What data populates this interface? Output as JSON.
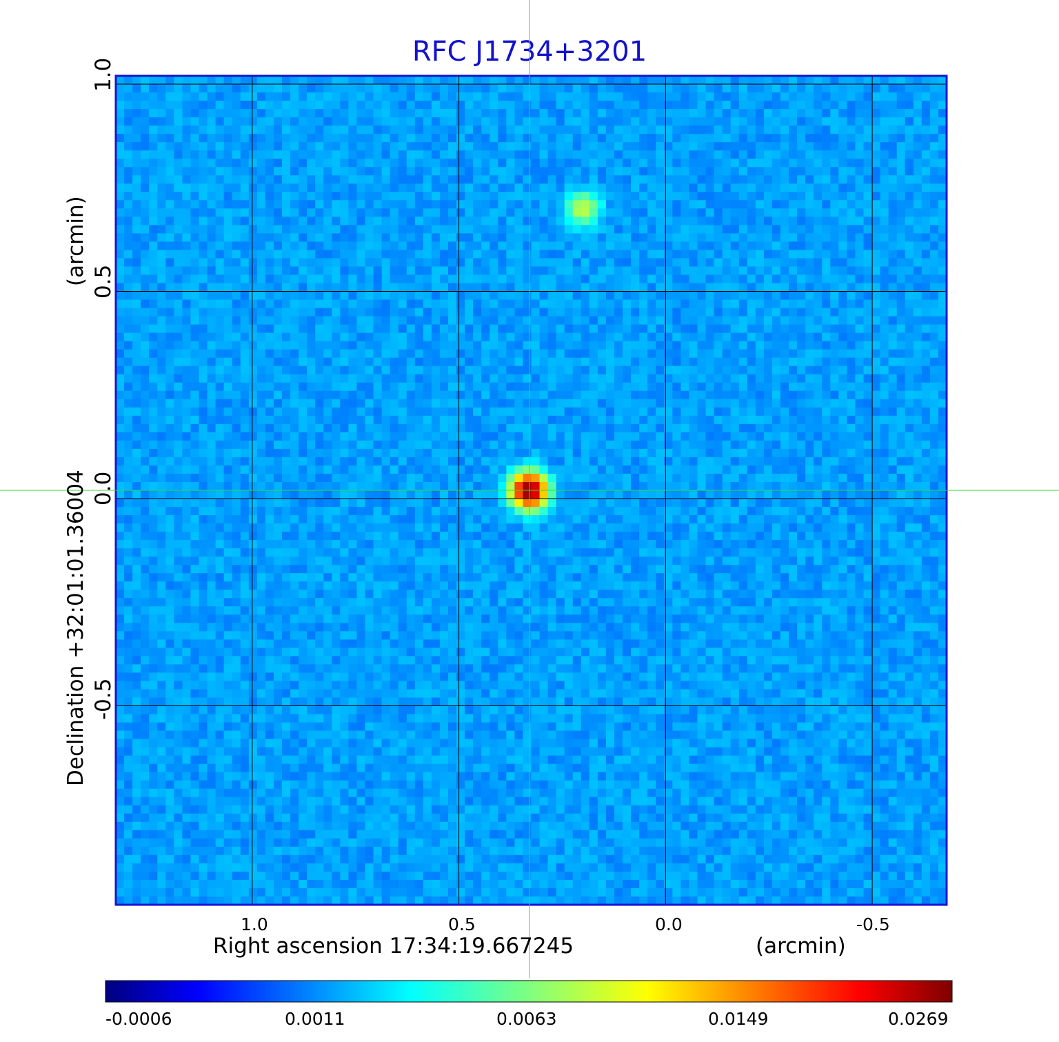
{
  "chart_data": {
    "type": "heatmap",
    "title": "RFC J1734+3201",
    "xlabel": "Right ascension  17:34:19.667245",
    "xunit": "(arcmin)",
    "ylabel": "Declination  +32:01:01.36004",
    "yunit": "(arcmin)",
    "x_ticks": [
      "1.0",
      "0.5",
      "0.0",
      "-0.5"
    ],
    "x_tick_values": [
      1.0,
      0.5,
      0.0,
      -0.5
    ],
    "y_ticks": [
      "1.0",
      "0.5",
      "0.0",
      "-0.5"
    ],
    "y_tick_values": [
      1.0,
      0.5,
      0.0,
      -0.5
    ],
    "xlim": [
      1.33,
      -0.68
    ],
    "ylim": [
      -0.98,
      1.02
    ],
    "grid": true,
    "crosshair": {
      "x": 0.33,
      "y": 0.02,
      "color": "#33dd33"
    },
    "sources": [
      {
        "x": 0.33,
        "y": 0.02,
        "peak": 0.0269
      },
      {
        "x": 0.2,
        "y": 0.7,
        "peak": 0.007
      }
    ],
    "colorbar": {
      "colormap": "jet",
      "ticks": [
        "-0.0006",
        "0.0011",
        "0.0063",
        "0.0149",
        "0.0269"
      ],
      "tick_values": [
        -0.0006,
        0.0011,
        0.0063,
        0.0149,
        0.0269
      ]
    }
  }
}
